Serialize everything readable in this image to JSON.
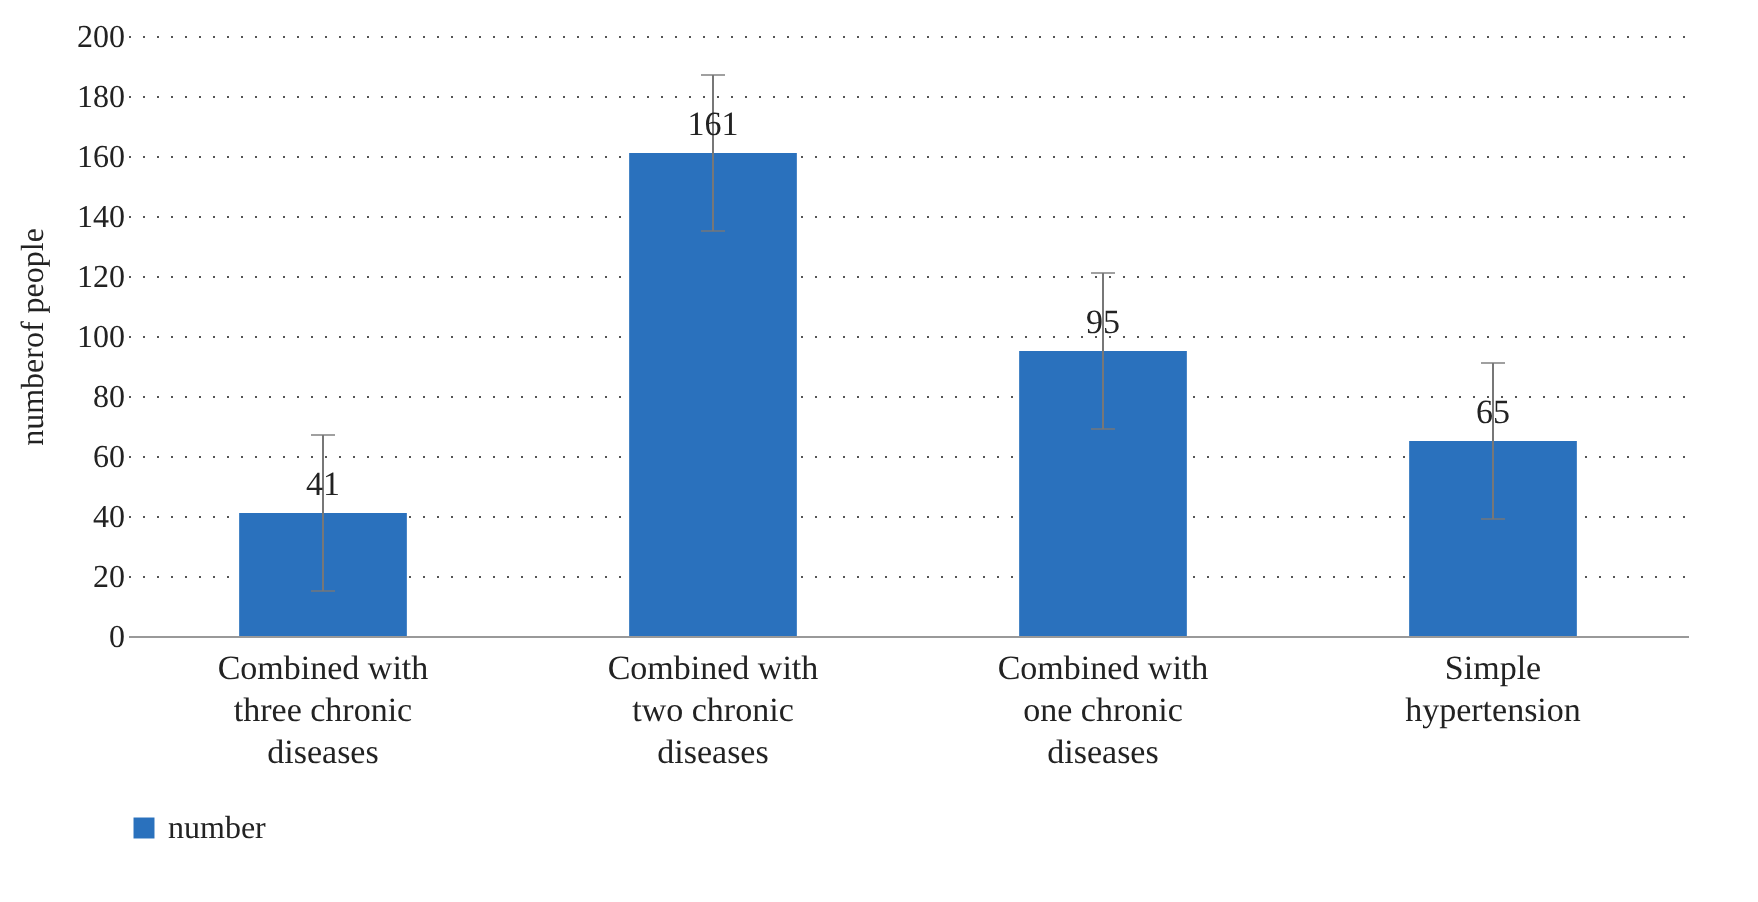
{
  "chart_data": {
    "type": "bar",
    "ylabel": "numberof people",
    "categories": [
      "Combined with three chronic diseases",
      "Combined with two chronic diseases",
      "Combined with one chronic diseases",
      "Simple hypertension"
    ],
    "series": [
      {
        "name": "number",
        "color": "#2a71bd",
        "values": [
          41,
          161,
          95,
          65
        ],
        "errors": [
          26,
          26,
          26,
          26
        ]
      }
    ],
    "ylim": [
      0,
      200
    ],
    "yticks": [
      0,
      20,
      40,
      60,
      80,
      100,
      120,
      140,
      160,
      180,
      200
    ],
    "grid": "y",
    "legend": "bottom left",
    "data_labels": true
  }
}
